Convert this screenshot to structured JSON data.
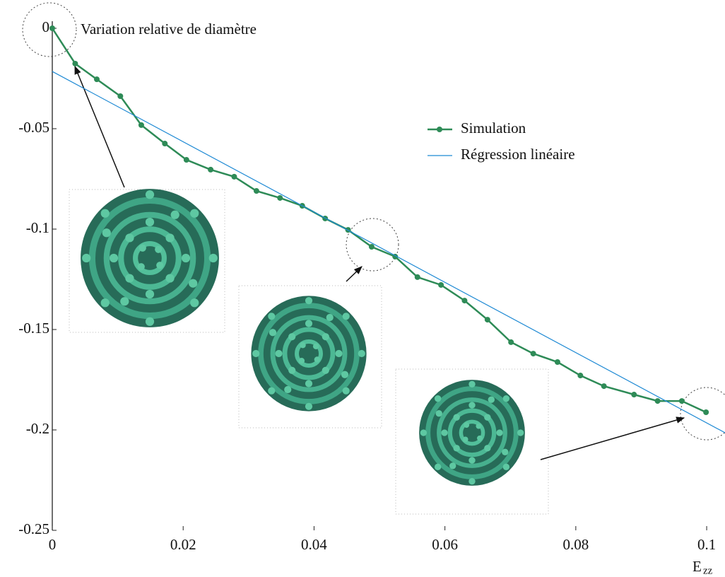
{
  "chart_data": {
    "type": "line",
    "y_label": "Variation relative de diamètre",
    "x_label": {
      "main": "E",
      "sub": "zz"
    },
    "xlim": [
      0,
      0.1028
    ],
    "ylim": [
      -0.25,
      0
    ],
    "xticks": [
      0,
      0.02,
      0.04,
      0.06,
      0.08,
      0.1
    ],
    "yticks": [
      0,
      -0.05,
      -0.1,
      -0.15,
      -0.2,
      -0.25
    ],
    "series": [
      {
        "name": "Simulation",
        "color": "#2e8b57",
        "marker": true,
        "x": [
          0,
          0.0035,
          0.0068,
          0.0104,
          0.0136,
          0.0172,
          0.0205,
          0.0242,
          0.0278,
          0.0312,
          0.0348,
          0.0382,
          0.0417,
          0.0452,
          0.0488,
          0.0524,
          0.0558,
          0.0594,
          0.063,
          0.0665,
          0.0701,
          0.0735,
          0.0772,
          0.0807,
          0.0843,
          0.0889,
          0.0925,
          0.0962,
          0.0999
        ],
        "values": [
          0,
          -0.0176,
          -0.0254,
          -0.0338,
          -0.0482,
          -0.0574,
          -0.0655,
          -0.0704,
          -0.0739,
          -0.081,
          -0.0845,
          -0.0884,
          -0.0947,
          -0.1004,
          -0.1088,
          -0.1137,
          -0.1239,
          -0.1278,
          -0.1356,
          -0.1451,
          -0.1563,
          -0.162,
          -0.1662,
          -0.1729,
          -0.1782,
          -0.1824,
          -0.1856,
          -0.1856,
          -0.1912
        ]
      },
      {
        "name": "Régression linéaire",
        "color": "#1f8ad4",
        "marker": false,
        "x": [
          0,
          0.1028
        ],
        "values": [
          -0.0215,
          -0.2014
        ]
      }
    ]
  }
}
